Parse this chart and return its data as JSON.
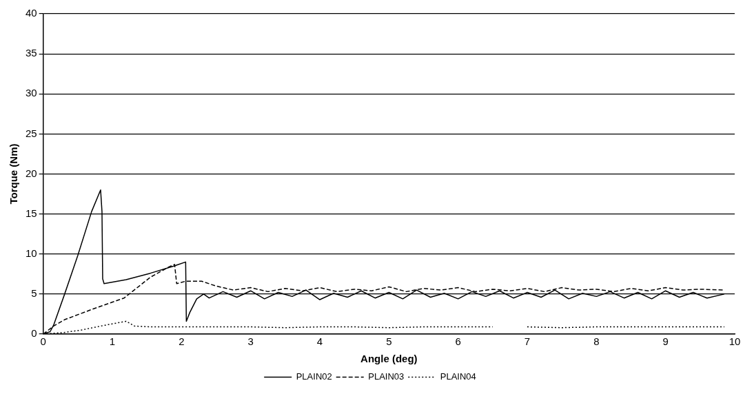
{
  "chart_data": {
    "type": "line",
    "xlabel": "Angle (deg)",
    "ylabel": "Torque (Nm)",
    "xlim": [
      0,
      10
    ],
    "xticks": [
      0,
      1,
      2,
      3,
      4,
      5,
      6,
      7,
      8,
      9,
      10
    ],
    "ylim": [
      0,
      40
    ],
    "yticks": [
      0,
      5,
      10,
      15,
      20,
      25,
      30,
      35,
      40
    ],
    "grid": "y",
    "legend": "bottom",
    "marker": "none",
    "series": [
      {
        "name": "PLAIN02",
        "color": "#000000",
        "line_style": "solid",
        "x": [
          0,
          0.1,
          0.15,
          0.31,
          0.5,
          0.7,
          0.83,
          0.85,
          0.86,
          0.88,
          1.2,
          1.55,
          1.89,
          2.06,
          2.07,
          2.12,
          2.22,
          2.32,
          2.4,
          2.6,
          2.8,
          3,
          3.2,
          3.4,
          3.6,
          3.8,
          4,
          4.2,
          4.4,
          4.6,
          4.8,
          5,
          5.2,
          5.4,
          5.6,
          5.8,
          6,
          6.2,
          6.4,
          6.6,
          6.8,
          7,
          7.2,
          7.4,
          7.6,
          7.8,
          8,
          8.2,
          8.4,
          8.6,
          8.8,
          9,
          9.2,
          9.4,
          9.6,
          9.85
        ],
        "values": [
          0,
          0.3,
          1.1,
          5,
          9.8,
          15.3,
          18,
          15.3,
          6.9,
          6.3,
          6.8,
          7.6,
          8.5,
          9,
          1.6,
          2.7,
          4.4,
          5,
          4.5,
          5.3,
          4.6,
          5.4,
          4.4,
          5.2,
          4.7,
          5.5,
          4.3,
          5.1,
          4.6,
          5.4,
          4.5,
          5.2,
          4.4,
          5.5,
          4.6,
          5.1,
          4.4,
          5.3,
          4.7,
          5.4,
          4.5,
          5.2,
          4.6,
          5.5,
          4.4,
          5.1,
          4.7,
          5.3,
          4.5,
          5.2,
          4.4,
          5.4,
          4.6,
          5.2,
          4.5,
          5
        ]
      },
      {
        "name": "PLAIN03",
        "color": "#000000",
        "line_style": "dashed",
        "x": [
          0,
          0.15,
          0.31,
          0.71,
          1.17,
          1.55,
          1.82,
          1.9,
          1.93,
          2.06,
          2.29,
          2.5,
          2.75,
          3,
          3.25,
          3.5,
          3.75,
          4,
          4.25,
          4.5,
          4.75,
          5,
          5.25,
          5.5,
          5.75,
          6,
          6.25,
          6.5,
          6.75,
          7,
          7.25,
          7.5,
          7.75,
          8,
          8.25,
          8.5,
          8.75,
          9,
          9.25,
          9.5,
          9.85
        ],
        "values": [
          0,
          1,
          1.8,
          3.1,
          4.5,
          7.1,
          8.4,
          8.7,
          6.3,
          6.6,
          6.6,
          6,
          5.5,
          5.8,
          5.3,
          5.7,
          5.4,
          5.8,
          5.3,
          5.6,
          5.4,
          5.9,
          5.3,
          5.7,
          5.5,
          5.8,
          5.3,
          5.6,
          5.4,
          5.7,
          5.3,
          5.8,
          5.5,
          5.6,
          5.3,
          5.7,
          5.4,
          5.8,
          5.5,
          5.6,
          5.5
        ]
      },
      {
        "name": "PLAIN04",
        "color": "#000000",
        "line_style": "dotted",
        "x": [
          0,
          0.3,
          0.55,
          0.89,
          1.2,
          1.32,
          1.55,
          2,
          2.5,
          3,
          3.5,
          4,
          4.5,
          5,
          5.5,
          6,
          6.5,
          6.7,
          7,
          7.5,
          8,
          8.5,
          9,
          9.5,
          9.85
        ],
        "values": [
          0,
          0.2,
          0.5,
          1.1,
          1.6,
          1,
          0.9,
          0.9,
          0.9,
          0.9,
          0.8,
          0.9,
          0.9,
          0.8,
          0.9,
          0.9,
          0.9,
          null,
          0.9,
          0.8,
          0.9,
          0.9,
          0.9,
          0.9,
          0.9
        ]
      }
    ]
  }
}
